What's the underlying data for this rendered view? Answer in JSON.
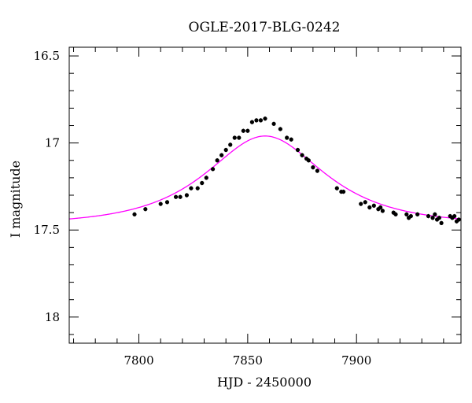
{
  "chart_data": {
    "type": "scatter",
    "title": "OGLE-2017-BLG-0242",
    "xlabel": "HJD - 2450000",
    "ylabel": "I magnitude",
    "xlim": [
      7768,
      7948
    ],
    "ylim": [
      18.15,
      16.45
    ],
    "y_inverted": true,
    "x_ticks": [
      7800,
      7850,
      7900
    ],
    "y_ticks": [
      16.5,
      17,
      17.5,
      18
    ],
    "grid": false,
    "legend": "none",
    "series": [
      {
        "kind": "points",
        "color": "#000000",
        "x": [
          7798,
          7803,
          7810,
          7813,
          7817,
          7819,
          7822,
          7824,
          7827,
          7829,
          7831,
          7834,
          7836,
          7838,
          7840,
          7842,
          7844,
          7846,
          7848,
          7850,
          7852,
          7854,
          7856,
          7858,
          7862,
          7865,
          7868,
          7870,
          7873,
          7875,
          7877,
          7878,
          7880,
          7882,
          7891,
          7893,
          7894,
          7902,
          7904,
          7906,
          7908,
          7910,
          7911,
          7912,
          7917,
          7918,
          7923,
          7924,
          7925,
          7928,
          7933,
          7935,
          7936,
          7937,
          7938,
          7939,
          7943,
          7944,
          7945,
          7946,
          7947
        ],
        "y": [
          17.41,
          17.38,
          17.35,
          17.34,
          17.31,
          17.31,
          17.3,
          17.26,
          17.26,
          17.23,
          17.2,
          17.15,
          17.1,
          17.07,
          17.04,
          17.01,
          16.97,
          16.97,
          16.93,
          16.93,
          16.88,
          16.87,
          16.87,
          16.86,
          16.89,
          16.92,
          16.97,
          16.98,
          17.04,
          17.07,
          17.09,
          17.1,
          17.14,
          17.16,
          17.26,
          17.28,
          17.28,
          17.35,
          17.34,
          17.37,
          17.36,
          17.38,
          17.37,
          17.39,
          17.4,
          17.41,
          17.41,
          17.43,
          17.42,
          17.41,
          17.42,
          17.43,
          17.41,
          17.44,
          17.43,
          17.46,
          17.42,
          17.43,
          17.42,
          17.45,
          17.44
        ],
        "errors": 0.012
      },
      {
        "kind": "model",
        "color": "#ff00ff",
        "model": {
          "t0": 7858,
          "tE": 38,
          "u0": 0.75,
          "base_mag": 17.47
        }
      }
    ]
  }
}
